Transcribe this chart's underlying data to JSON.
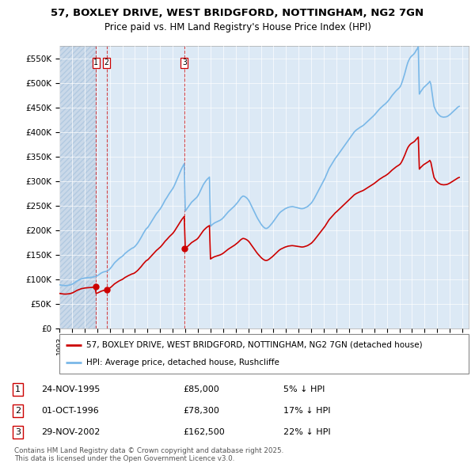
{
  "title_line1": "57, BOXLEY DRIVE, WEST BRIDGFORD, NOTTINGHAM, NG2 7GN",
  "title_line2": "Price paid vs. HM Land Registry's House Price Index (HPI)",
  "ylim": [
    0,
    575000
  ],
  "yticks": [
    0,
    50000,
    100000,
    150000,
    200000,
    250000,
    300000,
    350000,
    400000,
    450000,
    500000,
    550000
  ],
  "ytick_labels": [
    "£0",
    "£50K",
    "£100K",
    "£150K",
    "£200K",
    "£250K",
    "£300K",
    "£350K",
    "£400K",
    "£450K",
    "£500K",
    "£550K"
  ],
  "hpi_color": "#7ab8e8",
  "price_color": "#cc0000",
  "vline_color": "#cc0000",
  "background_color": "#ffffff",
  "plot_bg_color": "#dce9f5",
  "hatch_color": "#c8d8e8",
  "legend_label_price": "57, BOXLEY DRIVE, WEST BRIDGFORD, NOTTINGHAM, NG2 7GN (detached house)",
  "legend_label_hpi": "HPI: Average price, detached house, Rushcliffe",
  "transactions": [
    {
      "label": "1",
      "date_num": 1995.9,
      "price": 85000,
      "pct": "5%",
      "date_str": "24-NOV-1995"
    },
    {
      "label": "2",
      "date_num": 1996.75,
      "price": 78300,
      "pct": "17%",
      "date_str": "01-OCT-1996"
    },
    {
      "label": "3",
      "date_num": 2002.92,
      "price": 162500,
      "pct": "22%",
      "date_str": "29-NOV-2002"
    }
  ],
  "copyright_text": "Contains HM Land Registry data © Crown copyright and database right 2025.\nThis data is licensed under the Open Government Licence v3.0.",
  "hpi_data_x": [
    1993.0,
    1993.083,
    1993.167,
    1993.25,
    1993.333,
    1993.417,
    1993.5,
    1993.583,
    1993.667,
    1993.75,
    1993.833,
    1993.917,
    1994.0,
    1994.083,
    1994.167,
    1994.25,
    1994.333,
    1994.417,
    1994.5,
    1994.583,
    1994.667,
    1994.75,
    1994.833,
    1994.917,
    1995.0,
    1995.083,
    1995.167,
    1995.25,
    1995.333,
    1995.417,
    1995.5,
    1995.583,
    1995.667,
    1995.75,
    1995.833,
    1995.917,
    1996.0,
    1996.083,
    1996.167,
    1996.25,
    1996.333,
    1996.417,
    1996.5,
    1996.583,
    1996.667,
    1996.75,
    1996.833,
    1996.917,
    1997.0,
    1997.083,
    1997.167,
    1997.25,
    1997.333,
    1997.417,
    1997.5,
    1997.583,
    1997.667,
    1997.75,
    1997.833,
    1997.917,
    1998.0,
    1998.083,
    1998.167,
    1998.25,
    1998.333,
    1998.417,
    1998.5,
    1998.583,
    1998.667,
    1998.75,
    1998.833,
    1998.917,
    1999.0,
    1999.083,
    1999.167,
    1999.25,
    1999.333,
    1999.417,
    1999.5,
    1999.583,
    1999.667,
    1999.75,
    1999.833,
    1999.917,
    2000.0,
    2000.083,
    2000.167,
    2000.25,
    2000.333,
    2000.417,
    2000.5,
    2000.583,
    2000.667,
    2000.75,
    2000.833,
    2000.917,
    2001.0,
    2001.083,
    2001.167,
    2001.25,
    2001.333,
    2001.417,
    2001.5,
    2001.583,
    2001.667,
    2001.75,
    2001.833,
    2001.917,
    2002.0,
    2002.083,
    2002.167,
    2002.25,
    2002.333,
    2002.417,
    2002.5,
    2002.583,
    2002.667,
    2002.75,
    2002.833,
    2002.917,
    2003.0,
    2003.083,
    2003.167,
    2003.25,
    2003.333,
    2003.417,
    2003.5,
    2003.583,
    2003.667,
    2003.75,
    2003.833,
    2003.917,
    2004.0,
    2004.083,
    2004.167,
    2004.25,
    2004.333,
    2004.417,
    2004.5,
    2004.583,
    2004.667,
    2004.75,
    2004.833,
    2004.917,
    2005.0,
    2005.083,
    2005.167,
    2005.25,
    2005.333,
    2005.417,
    2005.5,
    2005.583,
    2005.667,
    2005.75,
    2005.833,
    2005.917,
    2006.0,
    2006.083,
    2006.167,
    2006.25,
    2006.333,
    2006.417,
    2006.5,
    2006.583,
    2006.667,
    2006.75,
    2006.833,
    2006.917,
    2007.0,
    2007.083,
    2007.167,
    2007.25,
    2007.333,
    2007.417,
    2007.5,
    2007.583,
    2007.667,
    2007.75,
    2007.833,
    2007.917,
    2008.0,
    2008.083,
    2008.167,
    2008.25,
    2008.333,
    2008.417,
    2008.5,
    2008.583,
    2008.667,
    2008.75,
    2008.833,
    2008.917,
    2009.0,
    2009.083,
    2009.167,
    2009.25,
    2009.333,
    2009.417,
    2009.5,
    2009.583,
    2009.667,
    2009.75,
    2009.833,
    2009.917,
    2010.0,
    2010.083,
    2010.167,
    2010.25,
    2010.333,
    2010.417,
    2010.5,
    2010.583,
    2010.667,
    2010.75,
    2010.833,
    2010.917,
    2011.0,
    2011.083,
    2011.167,
    2011.25,
    2011.333,
    2011.417,
    2011.5,
    2011.583,
    2011.667,
    2011.75,
    2011.833,
    2011.917,
    2012.0,
    2012.083,
    2012.167,
    2012.25,
    2012.333,
    2012.417,
    2012.5,
    2012.583,
    2012.667,
    2012.75,
    2012.833,
    2012.917,
    2013.0,
    2013.083,
    2013.167,
    2013.25,
    2013.333,
    2013.417,
    2013.5,
    2013.583,
    2013.667,
    2013.75,
    2013.833,
    2013.917,
    2014.0,
    2014.083,
    2014.167,
    2014.25,
    2014.333,
    2014.417,
    2014.5,
    2014.583,
    2014.667,
    2014.75,
    2014.833,
    2014.917,
    2015.0,
    2015.083,
    2015.167,
    2015.25,
    2015.333,
    2015.417,
    2015.5,
    2015.583,
    2015.667,
    2015.75,
    2015.833,
    2015.917,
    2016.0,
    2016.083,
    2016.167,
    2016.25,
    2016.333,
    2016.417,
    2016.5,
    2016.583,
    2016.667,
    2016.75,
    2016.833,
    2016.917,
    2017.0,
    2017.083,
    2017.167,
    2017.25,
    2017.333,
    2017.417,
    2017.5,
    2017.583,
    2017.667,
    2017.75,
    2017.833,
    2017.917,
    2018.0,
    2018.083,
    2018.167,
    2018.25,
    2018.333,
    2018.417,
    2018.5,
    2018.583,
    2018.667,
    2018.75,
    2018.833,
    2018.917,
    2019.0,
    2019.083,
    2019.167,
    2019.25,
    2019.333,
    2019.417,
    2019.5,
    2019.583,
    2019.667,
    2019.75,
    2019.833,
    2019.917,
    2020.0,
    2020.083,
    2020.167,
    2020.25,
    2020.333,
    2020.417,
    2020.5,
    2020.583,
    2020.667,
    2020.75,
    2020.833,
    2020.917,
    2021.0,
    2021.083,
    2021.167,
    2021.25,
    2021.333,
    2021.417,
    2021.5,
    2021.583,
    2021.667,
    2021.75,
    2021.833,
    2021.917,
    2022.0,
    2022.083,
    2022.167,
    2022.25,
    2022.333,
    2022.417,
    2022.5,
    2022.583,
    2022.667,
    2022.75,
    2022.833,
    2022.917,
    2023.0,
    2023.083,
    2023.167,
    2023.25,
    2023.333,
    2023.417,
    2023.5,
    2023.583,
    2023.667,
    2023.75,
    2023.833,
    2023.917,
    2024.0,
    2024.083,
    2024.167,
    2024.25,
    2024.333,
    2024.417,
    2024.5,
    2024.583,
    2024.667,
    2024.75,
    2024.833,
    2024.917,
    2025.0
  ],
  "hpi_data_y": [
    89000,
    88500,
    88200,
    87800,
    87500,
    87300,
    87200,
    87400,
    87700,
    88000,
    88500,
    89000,
    90000,
    91000,
    92500,
    94000,
    95500,
    97000,
    98000,
    99000,
    100000,
    101000,
    101500,
    102000,
    102500,
    103000,
    103200,
    103400,
    103600,
    103800,
    104000,
    104200,
    104500,
    105000,
    105500,
    106000,
    107000,
    108500,
    110000,
    111500,
    113000,
    114000,
    115000,
    115500,
    116000,
    116500,
    117500,
    119000,
    121000,
    123500,
    126000,
    129000,
    132000,
    134500,
    136500,
    138500,
    140500,
    142500,
    144000,
    145500,
    147000,
    149000,
    151500,
    153500,
    155000,
    157000,
    158500,
    160000,
    161500,
    163000,
    164000,
    165000,
    167000,
    169500,
    172000,
    175000,
    178500,
    182000,
    185500,
    189500,
    193500,
    197000,
    200500,
    203500,
    205000,
    208000,
    211500,
    215000,
    218500,
    222000,
    225500,
    229000,
    232000,
    235000,
    237500,
    240500,
    243000,
    246500,
    250000,
    254000,
    258000,
    262000,
    265000,
    268500,
    272000,
    275500,
    278500,
    281500,
    284500,
    288500,
    293000,
    298000,
    303000,
    308000,
    313000,
    318000,
    323000,
    327500,
    331500,
    335500,
    239000,
    242000,
    245000,
    248000,
    251000,
    254000,
    257000,
    259000,
    261000,
    263000,
    265000,
    267000,
    270000,
    274000,
    278500,
    283000,
    287500,
    292000,
    295500,
    298500,
    301500,
    304000,
    306000,
    308000,
    208000,
    210000,
    212000,
    213500,
    215000,
    216000,
    217000,
    218000,
    219000,
    220000,
    221500,
    223000,
    225000,
    227500,
    230000,
    232500,
    235000,
    237500,
    239500,
    241500,
    243500,
    245500,
    247500,
    249500,
    252000,
    254500,
    257000,
    260000,
    263000,
    266000,
    268000,
    269500,
    269000,
    268000,
    266500,
    264500,
    262000,
    258500,
    254000,
    249500,
    245000,
    240500,
    236000,
    231500,
    227500,
    223500,
    220000,
    216500,
    213000,
    210000,
    207500,
    205500,
    204000,
    203500,
    204000,
    205500,
    207500,
    210000,
    212500,
    215000,
    218000,
    221000,
    224000,
    227000,
    230000,
    233000,
    235500,
    237500,
    239000,
    240500,
    242000,
    243500,
    244500,
    245500,
    246500,
    247000,
    247500,
    247800,
    248000,
    247700,
    247200,
    246700,
    246200,
    245700,
    245000,
    244500,
    244000,
    243800,
    244000,
    244500,
    245500,
    246500,
    247500,
    249000,
    251000,
    253000,
    255000,
    258000,
    261500,
    265000,
    269000,
    273000,
    277000,
    281000,
    285000,
    289000,
    293000,
    297000,
    301000,
    305500,
    310500,
    315500,
    320500,
    325500,
    329000,
    332500,
    336000,
    339500,
    343000,
    346500,
    349000,
    352000,
    355000,
    358000,
    361000,
    364000,
    367000,
    370000,
    373000,
    376000,
    379000,
    382000,
    385000,
    388000,
    391000,
    394000,
    397000,
    400000,
    402000,
    404000,
    405500,
    407000,
    408500,
    410000,
    411000,
    412500,
    414000,
    416000,
    418000,
    420000,
    422000,
    424000,
    426000,
    428000,
    430000,
    432000,
    434000,
    436500,
    439000,
    441500,
    444000,
    446500,
    448500,
    450500,
    452500,
    454500,
    456000,
    458000,
    460000,
    462500,
    465000,
    468000,
    471000,
    474000,
    476500,
    479000,
    481500,
    484000,
    486000,
    488000,
    490000,
    493000,
    498000,
    504000,
    511000,
    518000,
    526000,
    534000,
    541000,
    546000,
    550000,
    553000,
    555000,
    557000,
    559000,
    562000,
    566000,
    569000,
    573000,
    477000,
    481000,
    484000,
    487000,
    490000,
    492000,
    494000,
    496000,
    498000,
    500000,
    503000,
    497000,
    481000,
    466000,
    452000,
    447000,
    442000,
    439000,
    436000,
    434000,
    432000,
    431000,
    430500,
    430000,
    430200,
    430500,
    431000,
    432000,
    433500,
    435000,
    437000,
    439000,
    441000,
    443000,
    445000,
    447000,
    449000,
    451000,
    452000
  ]
}
